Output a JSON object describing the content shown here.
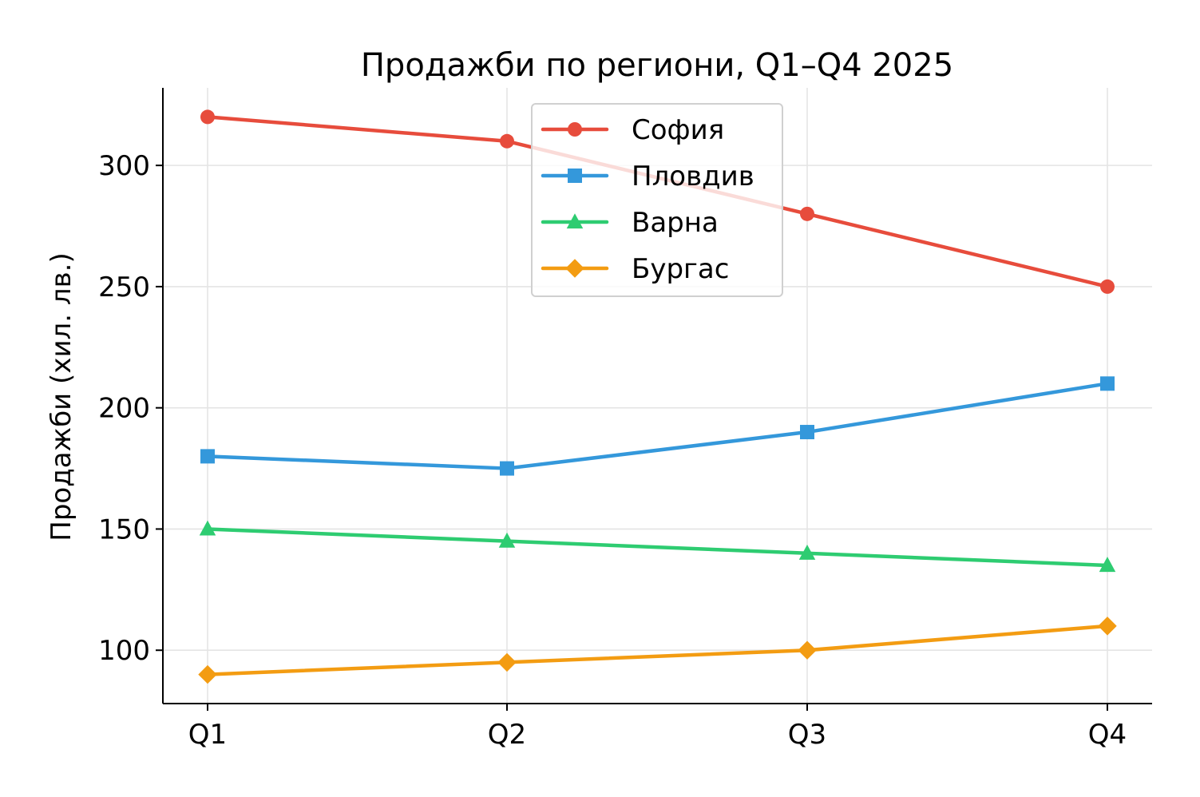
{
  "chart_data": {
    "type": "line",
    "title": "Продажби по региони, Q1–Q4 2025",
    "xlabel": "",
    "ylabel": "Продажби (хил. лв.)",
    "categories": [
      "Q1",
      "Q2",
      "Q3",
      "Q4"
    ],
    "ylim": [
      78,
      332
    ],
    "yticks": [
      100,
      150,
      200,
      250,
      300
    ],
    "grid": true,
    "legend_position": "top-center",
    "series": [
      {
        "name": "София",
        "values": [
          320,
          310,
          280,
          250
        ],
        "color": "#e74c3c",
        "marker": "circle"
      },
      {
        "name": "Пловдив",
        "values": [
          180,
          175,
          190,
          210
        ],
        "color": "#3498db",
        "marker": "square"
      },
      {
        "name": "Варна",
        "values": [
          150,
          145,
          140,
          135
        ],
        "color": "#2ecc71",
        "marker": "triangle"
      },
      {
        "name": "Бургас",
        "values": [
          90,
          95,
          100,
          110
        ],
        "color": "#f39c12",
        "marker": "diamond"
      }
    ]
  }
}
